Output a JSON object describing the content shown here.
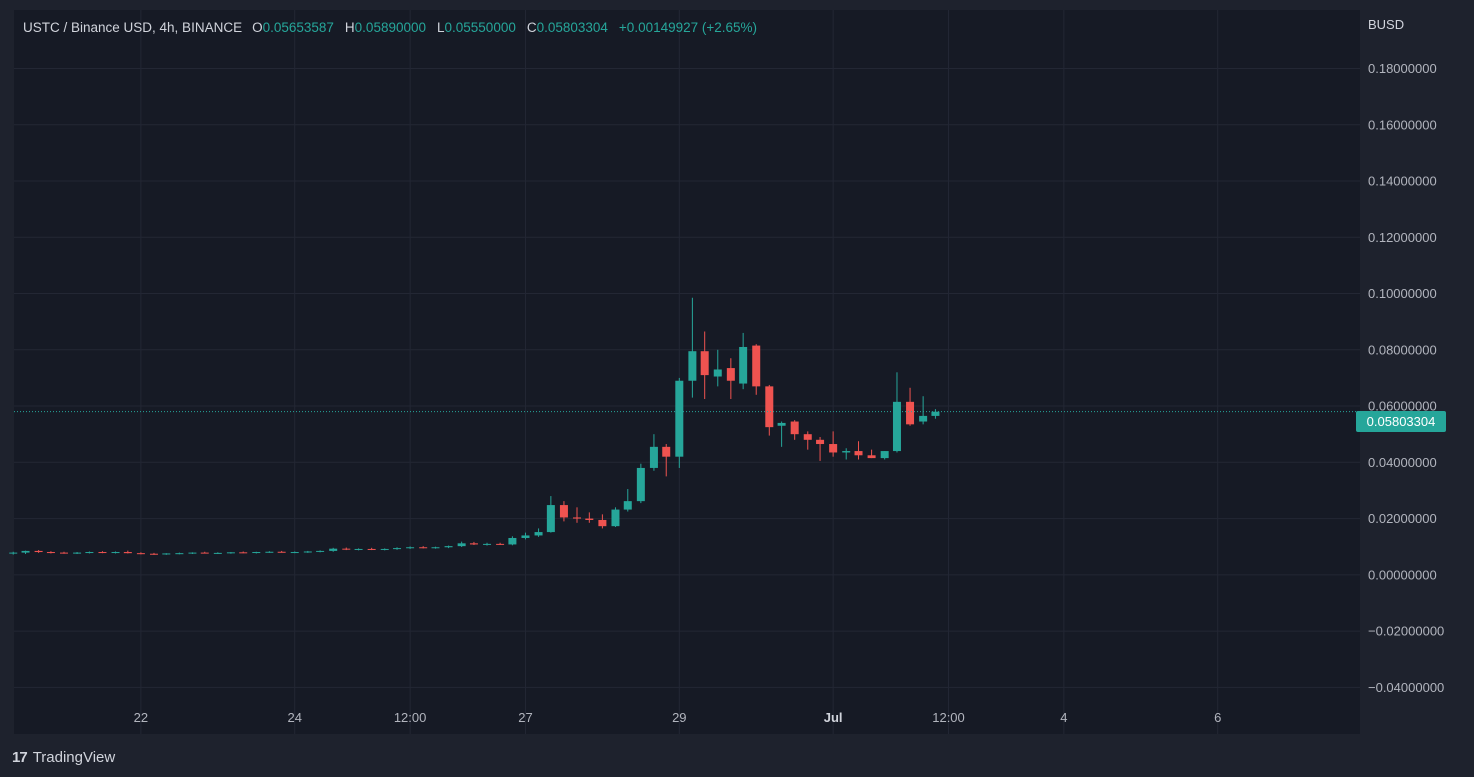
{
  "legend": {
    "symbol": "USTC / Binance USD, 4h, BINANCE",
    "open_label": "O",
    "open": "0.05653587",
    "high_label": "H",
    "high": "0.05890000",
    "low_label": "L",
    "low": "0.05550000",
    "close_label": "C",
    "close": "0.05803304",
    "change": "+0.00149927 (+2.65%)"
  },
  "unit": "BUSD",
  "current_price_tag": "0.05803304",
  "branding": {
    "logo_text": "TradingView",
    "logo_mark": "17"
  },
  "colors": {
    "background": "#1e222d",
    "plot": "#161a25",
    "grid": "#232734",
    "up": "#26a69a",
    "down": "#ef5350",
    "text": "#b2b5be"
  },
  "chart_data": {
    "type": "candlestick",
    "x_ticks": [
      {
        "label": "22",
        "day": 1
      },
      {
        "label": "24",
        "day": 3
      },
      {
        "label": "12:00",
        "day": 4.5
      },
      {
        "label": "27",
        "day": 6
      },
      {
        "label": "29",
        "day": 8
      },
      {
        "label": "Jul",
        "day": 10
      },
      {
        "label": "12:00",
        "day": 11.5
      },
      {
        "label": "4",
        "day": 13
      },
      {
        "label": "6",
        "day": 15
      }
    ],
    "x_range_days": [
      -0.65,
      16.85
    ],
    "y_ticks": [
      "0.18000000",
      "0.16000000",
      "0.14000000",
      "0.12000000",
      "0.10000000",
      "0.08000000",
      "0.06000000",
      "0.04000000",
      "0.02000000",
      "0.00000000",
      "−0.02000000",
      "−0.04000000"
    ],
    "y_tick_values": [
      0.18,
      0.16,
      0.14,
      0.12,
      0.1,
      0.08,
      0.06,
      0.04,
      0.02,
      0.0,
      -0.02,
      -0.04
    ],
    "ylim": [
      -0.0445,
      0.2008
    ],
    "last_price": 0.05803304,
    "candles": [
      {
        "d": -0.66,
        "o": 0.0077,
        "h": 0.0082,
        "l": 0.0072,
        "c": 0.0079
      },
      {
        "d": -0.5,
        "o": 0.0079,
        "h": 0.0086,
        "l": 0.0074,
        "c": 0.0085
      },
      {
        "d": -0.33,
        "o": 0.0085,
        "h": 0.0088,
        "l": 0.0078,
        "c": 0.0081
      },
      {
        "d": -0.17,
        "o": 0.0081,
        "h": 0.0084,
        "l": 0.0076,
        "c": 0.0079
      },
      {
        "d": 0.0,
        "o": 0.0079,
        "h": 0.0082,
        "l": 0.0075,
        "c": 0.0077
      },
      {
        "d": 0.17,
        "o": 0.0077,
        "h": 0.0081,
        "l": 0.0074,
        "c": 0.0079
      },
      {
        "d": 0.33,
        "o": 0.0079,
        "h": 0.0083,
        "l": 0.0076,
        "c": 0.0081
      },
      {
        "d": 0.5,
        "o": 0.0081,
        "h": 0.0084,
        "l": 0.0077,
        "c": 0.0079
      },
      {
        "d": 0.67,
        "o": 0.0079,
        "h": 0.0083,
        "l": 0.0076,
        "c": 0.0081
      },
      {
        "d": 0.83,
        "o": 0.0081,
        "h": 0.0086,
        "l": 0.0076,
        "c": 0.0077
      },
      {
        "d": 1.0,
        "o": 0.0077,
        "h": 0.008,
        "l": 0.0073,
        "c": 0.0075
      },
      {
        "d": 1.17,
        "o": 0.0075,
        "h": 0.0078,
        "l": 0.0071,
        "c": 0.0074
      },
      {
        "d": 1.33,
        "o": 0.0074,
        "h": 0.0077,
        "l": 0.0071,
        "c": 0.0076
      },
      {
        "d": 1.5,
        "o": 0.0076,
        "h": 0.0079,
        "l": 0.0073,
        "c": 0.0077
      },
      {
        "d": 1.67,
        "o": 0.0077,
        "h": 0.008,
        "l": 0.0074,
        "c": 0.0079
      },
      {
        "d": 1.83,
        "o": 0.0079,
        "h": 0.0082,
        "l": 0.0076,
        "c": 0.0077
      },
      {
        "d": 2.0,
        "o": 0.0077,
        "h": 0.008,
        "l": 0.0074,
        "c": 0.0078
      },
      {
        "d": 2.17,
        "o": 0.0078,
        "h": 0.0081,
        "l": 0.0075,
        "c": 0.008
      },
      {
        "d": 2.33,
        "o": 0.008,
        "h": 0.0083,
        "l": 0.0077,
        "c": 0.0079
      },
      {
        "d": 2.5,
        "o": 0.0079,
        "h": 0.0082,
        "l": 0.0076,
        "c": 0.0081
      },
      {
        "d": 2.67,
        "o": 0.0081,
        "h": 0.0084,
        "l": 0.0078,
        "c": 0.0082
      },
      {
        "d": 2.83,
        "o": 0.0082,
        "h": 0.0085,
        "l": 0.0079,
        "c": 0.008
      },
      {
        "d": 3.0,
        "o": 0.008,
        "h": 0.0083,
        "l": 0.0077,
        "c": 0.0081
      },
      {
        "d": 3.17,
        "o": 0.0081,
        "h": 0.0085,
        "l": 0.0078,
        "c": 0.0083
      },
      {
        "d": 3.33,
        "o": 0.0083,
        "h": 0.0087,
        "l": 0.008,
        "c": 0.0085
      },
      {
        "d": 3.5,
        "o": 0.0085,
        "h": 0.0096,
        "l": 0.0082,
        "c": 0.0093
      },
      {
        "d": 3.67,
        "o": 0.0093,
        "h": 0.0097,
        "l": 0.0088,
        "c": 0.0091
      },
      {
        "d": 3.83,
        "o": 0.0091,
        "h": 0.0094,
        "l": 0.0087,
        "c": 0.0092
      },
      {
        "d": 4.0,
        "o": 0.0092,
        "h": 0.0096,
        "l": 0.0088,
        "c": 0.009
      },
      {
        "d": 4.17,
        "o": 0.009,
        "h": 0.0094,
        "l": 0.0087,
        "c": 0.0092
      },
      {
        "d": 4.33,
        "o": 0.0092,
        "h": 0.0098,
        "l": 0.0089,
        "c": 0.0095
      },
      {
        "d": 4.5,
        "o": 0.0095,
        "h": 0.0101,
        "l": 0.0092,
        "c": 0.0098
      },
      {
        "d": 4.67,
        "o": 0.0098,
        "h": 0.0102,
        "l": 0.0094,
        "c": 0.0096
      },
      {
        "d": 4.83,
        "o": 0.0096,
        "h": 0.01,
        "l": 0.0093,
        "c": 0.0098
      },
      {
        "d": 5.0,
        "o": 0.0098,
        "h": 0.0104,
        "l": 0.0095,
        "c": 0.0102
      },
      {
        "d": 5.17,
        "o": 0.0102,
        "h": 0.0118,
        "l": 0.0099,
        "c": 0.0112
      },
      {
        "d": 5.33,
        "o": 0.0112,
        "h": 0.0117,
        "l": 0.0106,
        "c": 0.0108
      },
      {
        "d": 5.5,
        "o": 0.0108,
        "h": 0.0114,
        "l": 0.0104,
        "c": 0.011
      },
      {
        "d": 5.67,
        "o": 0.011,
        "h": 0.0114,
        "l": 0.0106,
        "c": 0.0108
      },
      {
        "d": 5.83,
        "o": 0.0108,
        "h": 0.0137,
        "l": 0.0105,
        "c": 0.0131
      },
      {
        "d": 6.0,
        "o": 0.0131,
        "h": 0.015,
        "l": 0.0126,
        "c": 0.014
      },
      {
        "d": 6.17,
        "o": 0.014,
        "h": 0.0165,
        "l": 0.0135,
        "c": 0.0152
      },
      {
        "d": 6.33,
        "o": 0.0152,
        "h": 0.028,
        "l": 0.015,
        "c": 0.0248
      },
      {
        "d": 6.5,
        "o": 0.0248,
        "h": 0.0262,
        "l": 0.019,
        "c": 0.0204
      },
      {
        "d": 6.67,
        "o": 0.0204,
        "h": 0.024,
        "l": 0.0185,
        "c": 0.02
      },
      {
        "d": 6.83,
        "o": 0.02,
        "h": 0.0222,
        "l": 0.0185,
        "c": 0.0195
      },
      {
        "d": 7.0,
        "o": 0.0195,
        "h": 0.0215,
        "l": 0.0165,
        "c": 0.0173
      },
      {
        "d": 7.17,
        "o": 0.0173,
        "h": 0.024,
        "l": 0.017,
        "c": 0.0232
      },
      {
        "d": 7.33,
        "o": 0.0232,
        "h": 0.0305,
        "l": 0.0225,
        "c": 0.0262
      },
      {
        "d": 7.5,
        "o": 0.0262,
        "h": 0.0395,
        "l": 0.0255,
        "c": 0.038
      },
      {
        "d": 7.67,
        "o": 0.038,
        "h": 0.05,
        "l": 0.037,
        "c": 0.0455
      },
      {
        "d": 7.83,
        "o": 0.0455,
        "h": 0.0465,
        "l": 0.035,
        "c": 0.042
      },
      {
        "d": 8.0,
        "o": 0.042,
        "h": 0.07,
        "l": 0.038,
        "c": 0.069
      },
      {
        "d": 8.17,
        "o": 0.069,
        "h": 0.0985,
        "l": 0.063,
        "c": 0.0795
      },
      {
        "d": 8.33,
        "o": 0.0795,
        "h": 0.0865,
        "l": 0.0625,
        "c": 0.071
      },
      {
        "d": 8.5,
        "o": 0.0705,
        "h": 0.08,
        "l": 0.067,
        "c": 0.073
      },
      {
        "d": 8.67,
        "o": 0.0735,
        "h": 0.077,
        "l": 0.0625,
        "c": 0.069
      },
      {
        "d": 8.83,
        "o": 0.068,
        "h": 0.086,
        "l": 0.066,
        "c": 0.081
      },
      {
        "d": 9.0,
        "o": 0.0815,
        "h": 0.082,
        "l": 0.064,
        "c": 0.067
      },
      {
        "d": 9.17,
        "o": 0.067,
        "h": 0.0675,
        "l": 0.0495,
        "c": 0.0525
      },
      {
        "d": 9.33,
        "o": 0.053,
        "h": 0.0545,
        "l": 0.0455,
        "c": 0.054
      },
      {
        "d": 9.5,
        "o": 0.0545,
        "h": 0.055,
        "l": 0.048,
        "c": 0.05
      },
      {
        "d": 9.67,
        "o": 0.05,
        "h": 0.051,
        "l": 0.0445,
        "c": 0.048
      },
      {
        "d": 9.83,
        "o": 0.048,
        "h": 0.049,
        "l": 0.0405,
        "c": 0.0465
      },
      {
        "d": 10.0,
        "o": 0.0465,
        "h": 0.051,
        "l": 0.042,
        "c": 0.0435
      },
      {
        "d": 10.17,
        "o": 0.0435,
        "h": 0.045,
        "l": 0.041,
        "c": 0.044
      },
      {
        "d": 10.33,
        "o": 0.044,
        "h": 0.0475,
        "l": 0.041,
        "c": 0.0425
      },
      {
        "d": 10.5,
        "o": 0.0425,
        "h": 0.0445,
        "l": 0.0415,
        "c": 0.0415
      },
      {
        "d": 10.67,
        "o": 0.0415,
        "h": 0.044,
        "l": 0.041,
        "c": 0.044
      },
      {
        "d": 10.83,
        "o": 0.044,
        "h": 0.072,
        "l": 0.0435,
        "c": 0.0615
      },
      {
        "d": 11.0,
        "o": 0.0615,
        "h": 0.0665,
        "l": 0.053,
        "c": 0.0535
      },
      {
        "d": 11.17,
        "o": 0.0545,
        "h": 0.0635,
        "l": 0.0535,
        "c": 0.0565
      },
      {
        "d": 11.33,
        "o": 0.0565,
        "h": 0.0589,
        "l": 0.0555,
        "c": 0.058
      }
    ]
  }
}
